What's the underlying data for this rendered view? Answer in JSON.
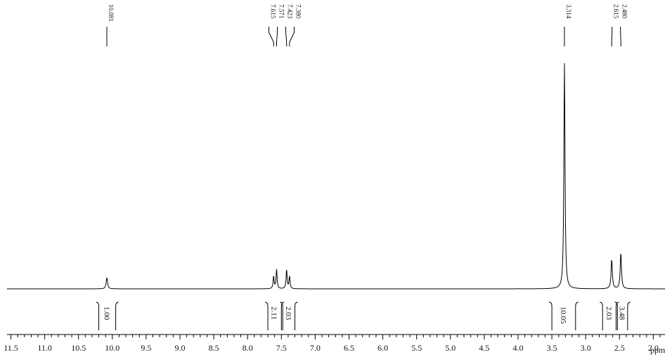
{
  "chart_data": {
    "type": "line",
    "title": "",
    "xlabel": "ppm",
    "ylabel": "",
    "x_reversed": true,
    "xlim": [
      11.5,
      1.5
    ],
    "x_ticks": [
      "11.5",
      "11.0",
      "10.5",
      "10.0",
      "9.5",
      "9.0",
      "8.5",
      "8.0",
      "7.5",
      "7.0",
      "6.5",
      "6.0",
      "5.5",
      "5.0",
      "4.5",
      "4.0",
      "3.5",
      "3.0",
      "2.5",
      "2.0"
    ],
    "minor_tick_step": 0.1,
    "grid": false,
    "legend": "none",
    "peaks": [
      {
        "ppm": 10.081,
        "label": "10.081",
        "height": 0.05,
        "width": 0.012
      },
      {
        "ppm": 7.615,
        "label": "7.615",
        "height": 0.055,
        "width": 0.009
      },
      {
        "ppm": 7.571,
        "label": "7.571",
        "height": 0.085,
        "width": 0.009
      },
      {
        "ppm": 7.423,
        "label": "7.423",
        "height": 0.085,
        "width": 0.009
      },
      {
        "ppm": 7.38,
        "label": "7.380",
        "height": 0.055,
        "width": 0.009
      },
      {
        "ppm": 3.314,
        "label": "3.314",
        "height": 1.0,
        "width": 0.01
      },
      {
        "ppm": 2.615,
        "label": "2.615",
        "height": 0.13,
        "width": 0.011
      },
      {
        "ppm": 2.48,
        "label": "2.480",
        "height": 0.16,
        "width": 0.011
      }
    ],
    "integrals": [
      {
        "value": "1.00",
        "from": 10.2,
        "to": 9.95
      },
      {
        "value": "2.11",
        "from": 7.7,
        "to": 7.5
      },
      {
        "value": "2.03",
        "from": 7.48,
        "to": 7.3
      },
      {
        "value": "10.05",
        "from": 3.5,
        "to": 3.15
      },
      {
        "value": "2.03",
        "from": 2.75,
        "to": 2.55
      },
      {
        "value": "3.48",
        "from": 2.53,
        "to": 2.38
      }
    ],
    "line_color": "#000000"
  }
}
